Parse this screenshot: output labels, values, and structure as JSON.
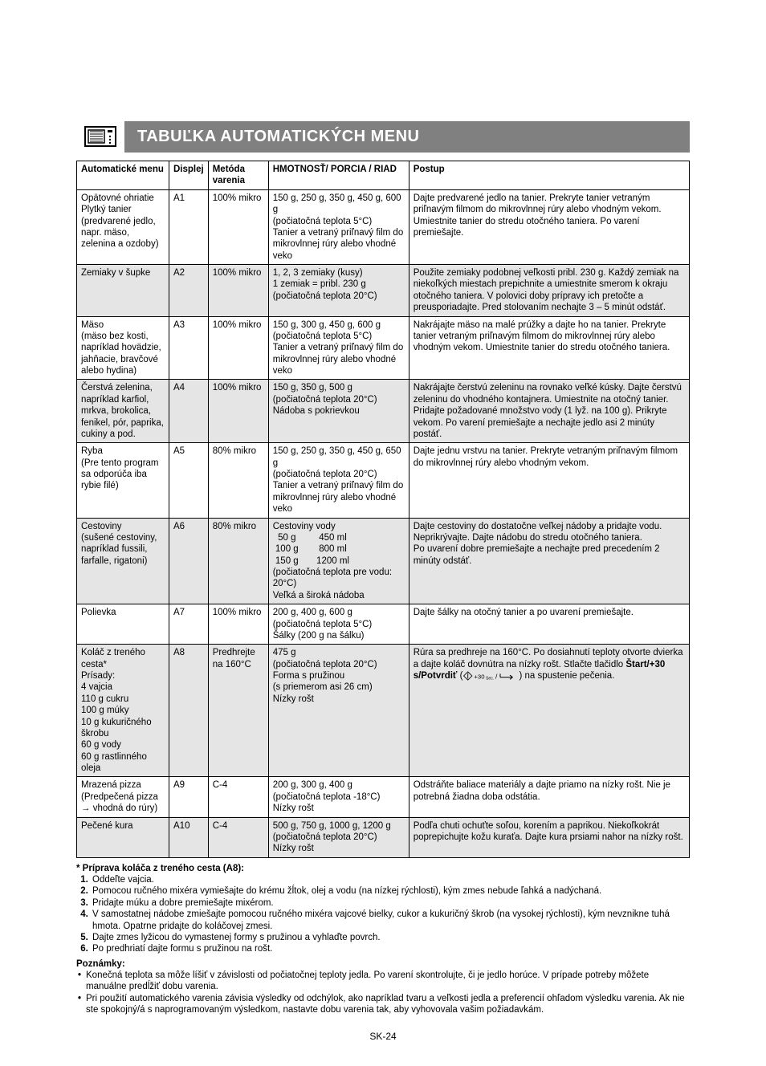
{
  "title": "TABUĽKA AUTOMATICKÝCH MENU",
  "headers": {
    "menu": "Automatické menu",
    "display": "Displej",
    "method": "Metóda varenia",
    "weight": "HMOTNOSŤ/ PORCIA / RIAD",
    "procedure": "Postup"
  },
  "rows": [
    {
      "shade": false,
      "menu": "Opätovné ohriatie\nPlytký tanier\n(predvarené jedlo, napr. mäso, zelenina a ozdoby)",
      "display": "A1",
      "method": "100% mikro",
      "weight": "150 g, 250 g, 350 g, 450 g, 600 g\n(počiatočná teplota 5°C)\nTanier a vetraný priľnavý film do mikrovlnnej rúry alebo vhodné veko",
      "procedure": "Dajte predvarené jedlo na tanier. Prekryte tanier vetraným priľnavým filmom do mikrovlnnej rúry alebo vhodným vekom. Umiestnite tanier do stredu otočného taniera. Po varení premiešajte."
    },
    {
      "shade": true,
      "menu": "Zemiaky v šupke",
      "display": "A2",
      "method": "100% mikro",
      "weight": "1, 2, 3  zemiaky (kusy)\n1 zemiak = pribl. 230 g\n(počiatočná teplota 20°C)",
      "procedure": "Použite zemiaky podobnej veľkosti pribl. 230 g. Každý zemiak na niekoľkých miestach prepichnite a umiestnite smerom k okraju otočného taniera. V polovici doby prípravy ich pretočte a preusporiadajte. Pred stolovaním nechajte 3 – 5 minút odstáť."
    },
    {
      "shade": false,
      "menu": "Mäso\n(mäso bez kosti, napríklad hovädzie, jahňacie, bravčové alebo hydina)",
      "display": "A3",
      "method": "100% mikro",
      "weight": "150 g, 300 g, 450 g, 600 g\n(počiatočná teplota 5°C)\nTanier a vetraný priľnavý film do mikrovlnnej rúry alebo vhodné veko",
      "procedure": "Nakrájajte mäso na malé prúžky a dajte ho na tanier. Prekryte tanier vetraným priľnavým filmom do mikrovlnnej rúry alebo vhodným vekom. Umiestnite tanier do stredu otočného taniera."
    },
    {
      "shade": true,
      "menu": "Čerstvá zelenina, napríklad karfiol, mrkva, brokolica, fenikel, pór, paprika, cukiny a pod.",
      "display": "A4",
      "method": "100% mikro",
      "weight": "150 g, 350 g, 500 g\n(počiatočná teplota 20°C)\nNádoba s pokrievkou",
      "procedure": "Nakrájajte čerstvú zeleninu na rovnako veľké kúsky. Dajte čerstvú zeleninu do vhodného kontajnera. Umiestnite na otočný tanier. Pridajte požadované množstvo vody (1 lyž. na 100 g). Prikryte vekom. Po varení premiešajte a nechajte jedlo asi 2 minúty postáť."
    },
    {
      "shade": false,
      "menu": "Ryba\n(Pre tento program sa odporúča iba rybie filé)",
      "display": "A5",
      "method": "80% mikro",
      "weight": "150 g, 250 g, 350 g, 450 g, 650 g\n(počiatočná teplota 20°C)\nTanier a vetraný priľnavý film do mikrovlnnej rúry alebo vhodné veko",
      "procedure": "Dajte jednu vrstvu na tanier. Prekryte vetraným priľnavým filmom do mikrovlnnej rúry alebo vhodným vekom."
    },
    {
      "shade": true,
      "menu": "Cestoviny\n(sušené cestoviny, napríklad fussili, farfalle, rigatoni)",
      "display": "A6",
      "method": "80% mikro",
      "weight_pasta": {
        "head": "Cestoviny   vody",
        "lines": [
          "  50 g         450 ml",
          " 100 g        800 ml",
          " 150 g       1200 ml"
        ],
        "tail": "(počiatočná teplota pre vodu: 20°C)\nVeľká a široká nádoba"
      },
      "procedure": "Dajte cestoviny do dostatočne veľkej nádoby a pridajte vodu. Neprikrývajte. Dajte nádobu do stredu otočného taniera.\nPo uvarení dobre premiešajte a nechajte pred precedením 2 minúty odstáť."
    },
    {
      "shade": false,
      "menu": "Polievka",
      "display": "A7",
      "method": "100% mikro",
      "weight": "200 g, 400 g, 600 g\n(počiatočná teplota 5°C)\nŠálky (200 g na šálku)",
      "procedure": "Dajte šálky na otočný tanier a po uvarení premiešajte."
    },
    {
      "shade": true,
      "menu": "Koláč z treného cesta*\nPrísady:\n4 vajcia\n110 g cukru\n100 g múky\n10 g kukuričného škrobu\n60 g vody\n60 g rastlinného oleja",
      "display": "A8",
      "method": "Predhrejte na 160°C",
      "weight": "475 g\n(počiatočná teplota 20°C)\nForma s pružinou\n(s priemerom asi 26 cm)\nNízky rošt",
      "procedure_html": true,
      "procedure": "Rúra sa predhreje na 160°C. Po dosiahnutí teploty otvorte dvierka a dajte koláč dovnútra na nízky rošt. Stlačte tlačidlo <b>Štart/+30 s/Potvrdiť</b> ({ICON}) na spustenie pečenia."
    },
    {
      "shade": false,
      "menu": "Mrazená pizza\n(Predpečená pizza → vhodná do rúry)",
      "display": "A9",
      "method": "C-4",
      "weight": "200 g, 300 g, 400 g\n(počiatočná teplota -18°C)\nNízky rošt",
      "procedure": "Odstráňte baliace materiály a dajte priamo na nízky rošt. Nie je potrebná žiadna doba odstátia."
    },
    {
      "shade": true,
      "menu": "Pečené kura",
      "display": "A10",
      "method": "C-4",
      "weight": "500 g, 750 g, 1000 g, 1200 g\n(počiatočná teplota 20°C)\nNízky rošt",
      "procedure": "Podľa chuti ochuťte soľou, korením a paprikou. Niekoľkokrát poprepichujte kožu kuraťa. Dajte kura prsiami nahor na nízky rošt."
    }
  ],
  "cake_title": "* Príprava koláča z treného cesta (A8):",
  "cake_steps": [
    "Oddeľte vajcia.",
    "Pomocou ručného mixéra vymiešajte do krému žĺtok, olej a vodu (na nízkej rýchlosti), kým zmes nebude ľahká a nadýchaná.",
    "Pridajte múku a dobre premiešajte mixérom.",
    "V samostatnej nádobe zmiešajte pomocou ručného mixéra vajcové bielky, cukor a kukuričný škrob (na vysokej rýchlosti), kým nevznikne tuhá hmota. Opatrne pridajte do koláčovej zmesi.",
    "Dajte zmes lyžicou do vymastenej formy s pružinou a vyhlaďte povrch.",
    "Po predhriatí dajte formu s pružinou na rošt."
  ],
  "notes_title": "Poznámky:",
  "notes": [
    "Konečná teplota sa môže líšiť v závislosti od počiatočnej teploty jedla. Po varení skontrolujte, či je jedlo horúce. V prípade potreby môžete manuálne predĺžiť dobu varenia.",
    "Pri použití automatického varenia závisia výsledky od odchýlok, ako napríklad tvaru a veľkosti jedla a preferencií ohľadom výsledku varenia. Ak nie ste spokojný/á s naprogramovaným výsledkom, nastavte dobu varenia tak, aby vyhovovala vašim požiadavkám."
  ],
  "page_num": "SK-24"
}
